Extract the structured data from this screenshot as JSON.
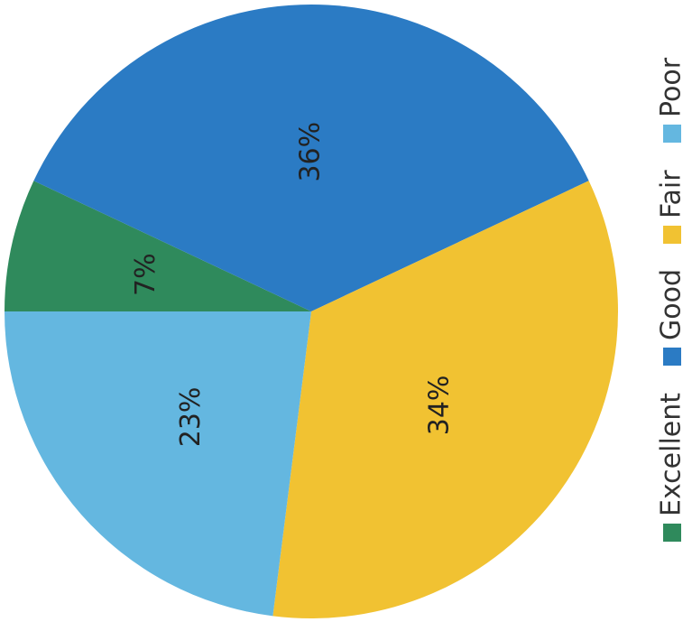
{
  "chart_data": {
    "type": "pie",
    "categories": [
      "Excellent",
      "Good",
      "Fair",
      "Poor"
    ],
    "values": [
      7,
      36,
      34,
      23
    ],
    "value_labels": [
      "7%",
      "36%",
      "34%",
      "23%"
    ],
    "colors": [
      "#2f8a5c",
      "#2b7bc4",
      "#f1c232",
      "#64b7e0"
    ],
    "legend": "right"
  }
}
